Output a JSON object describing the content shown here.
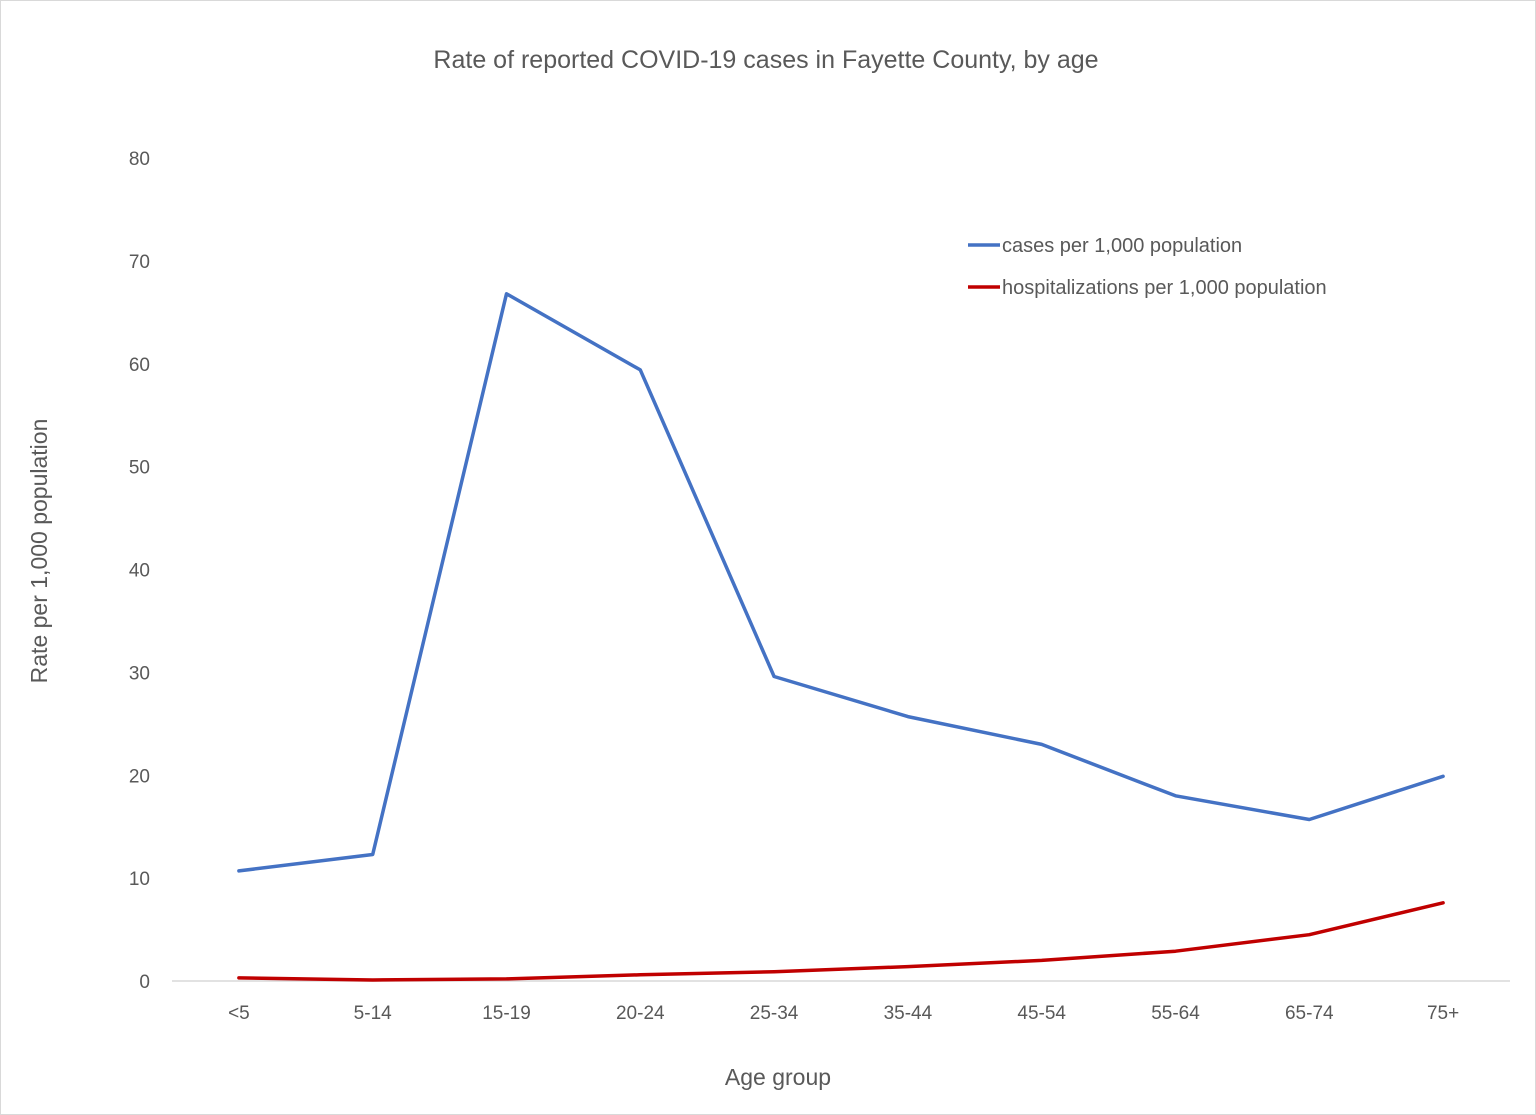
{
  "chart_data": {
    "type": "line",
    "title": "Rate of reported COVID-19 cases in Fayette County, by age",
    "xlabel": "Age group",
    "ylabel": "Rate per 1,000 population",
    "categories": [
      "<5",
      "5-14",
      "15-19",
      "20-24",
      "25-34",
      "35-44",
      "45-54",
      "55-64",
      "65-74",
      "75+"
    ],
    "ylim": [
      0,
      80
    ],
    "yticks": [
      0,
      10,
      20,
      30,
      40,
      50,
      60,
      70,
      80
    ],
    "grid": false,
    "legend_position": "top-right",
    "series": [
      {
        "name": "cases per 1,000 population",
        "color": "#4472C4",
        "values": [
          10.7,
          12.3,
          66.8,
          59.4,
          29.6,
          25.7,
          23.0,
          18.0,
          15.7,
          19.9
        ]
      },
      {
        "name": "hospitalizations per 1,000 population",
        "color": "#C00000",
        "values": [
          0.3,
          0.1,
          0.2,
          0.6,
          0.9,
          1.4,
          2.0,
          2.9,
          4.5,
          7.6
        ]
      }
    ]
  }
}
